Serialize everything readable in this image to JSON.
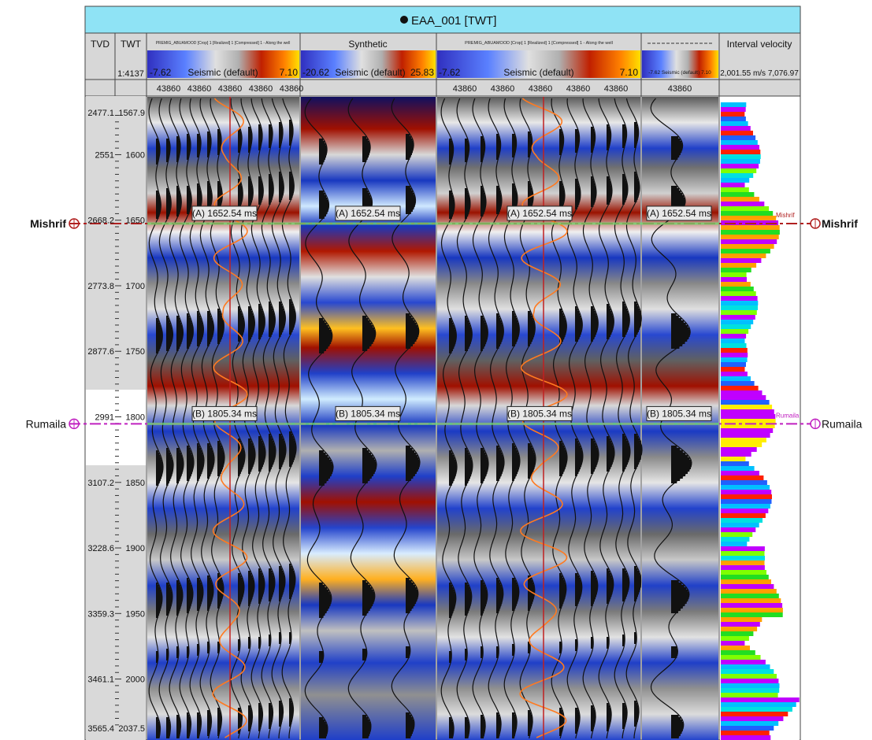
{
  "header": {
    "title": "EAA_001 [TWT]"
  },
  "columns": {
    "tvd_label": "TVD",
    "twt_label": "TWT",
    "scale": "1:4137",
    "track1": {
      "title": "PREMIG_ABUAMOOD [Crop] 1 [Realized] 1 [Compressed] 1 - Along the well",
      "min": "-7.62",
      "max": "7.10",
      "colorbar_label": "Seismic (default)",
      "traces": [
        "43860",
        "43860",
        "43860",
        "43860",
        "43860"
      ]
    },
    "track2": {
      "title": "Synthetic",
      "min": "-20.62",
      "max": "25.83",
      "colorbar_label": "Seismic (default)"
    },
    "track3": {
      "title": "PREMIG_ABUAMOOD [Crop] 1 [Realized] 1 [Compressed] 1 - Along the well",
      "min": "-7.62",
      "max": "7.10",
      "colorbar_label": "Seismic (default)",
      "traces": [
        "43860",
        "43860",
        "43860",
        "43860",
        "43860"
      ]
    },
    "track4": {
      "title": "",
      "colorbar_label": "-7.62 Seismic (default) 7.10",
      "traces": [
        "43860"
      ]
    },
    "track5": {
      "title": "Interval velocity",
      "range": "2,001.55 m/s 7,076.97"
    }
  },
  "depth_axis": {
    "tvd_labels": [
      "2477.1",
      "2551",
      "2668.2",
      "2773.8",
      "2877.6",
      "2991",
      "3107.2",
      "3228.6",
      "3359.3",
      "3461.1",
      "3565.4"
    ],
    "twt_labels": [
      "1567.9",
      "1600",
      "1650",
      "1700",
      "1750",
      "1800",
      "1850",
      "1900",
      "1950",
      "2000",
      "2037.5"
    ],
    "twt_values": [
      1567.9,
      1600,
      1650,
      1700,
      1750,
      1800,
      1850,
      1900,
      1950,
      2000,
      2037.5
    ]
  },
  "horizons": [
    {
      "name": "Mishrif",
      "time_ms": 1652.54,
      "label": "(A) 1652.54 ms",
      "color": "#b02020"
    },
    {
      "name": "Rumaila",
      "time_ms": 1805.34,
      "label": "(B) 1805.34 ms",
      "color": "#c020c0"
    }
  ],
  "colors": {
    "header_bg": "#8fe3f5",
    "blue": "#1f3fc8",
    "red": "#a01000",
    "grey": "#9a9a9a",
    "orange": "#ff7a20"
  }
}
